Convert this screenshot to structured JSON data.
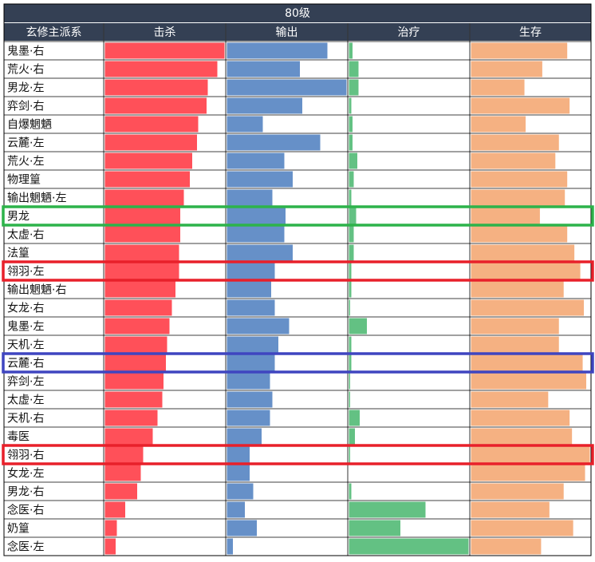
{
  "chart_data": {
    "type": "table",
    "title": "80级",
    "columns": [
      "玄修主派系",
      "击杀",
      "输出",
      "治疗",
      "生存"
    ],
    "colors": {
      "header_bg": "#344054",
      "kill": "#ff5059",
      "output": "#6690c8",
      "heal": "#63c183",
      "survive": "#f5b182",
      "grid": "#000000",
      "highlight_green": "#2db34a",
      "highlight_red": "#e8202a",
      "highlight_blue": "#3f45c0"
    },
    "rows": [
      {
        "name": "鬼墨·右",
        "kill": 1.0,
        "output": 0.84,
        "heal": 0.03,
        "survive": 0.81,
        "highlight": ""
      },
      {
        "name": "荒火·右",
        "kill": 0.94,
        "output": 0.61,
        "heal": 0.08,
        "survive": 0.6,
        "highlight": ""
      },
      {
        "name": "男龙·左",
        "kill": 0.86,
        "output": 1.0,
        "heal": 0.08,
        "survive": 0.45,
        "highlight": ""
      },
      {
        "name": "弈剑·右",
        "kill": 0.85,
        "output": 0.63,
        "heal": 0.02,
        "survive": 0.83,
        "highlight": ""
      },
      {
        "name": "自爆魍魉",
        "kill": 0.78,
        "output": 0.3,
        "heal": 0.03,
        "survive": 0.46,
        "highlight": ""
      },
      {
        "name": "云麓·左",
        "kill": 0.77,
        "output": 0.78,
        "heal": 0.03,
        "survive": 0.74,
        "highlight": ""
      },
      {
        "name": "荒火·左",
        "kill": 0.73,
        "output": 0.48,
        "heal": 0.07,
        "survive": 0.71,
        "highlight": ""
      },
      {
        "name": "物理篁",
        "kill": 0.71,
        "output": 0.55,
        "heal": 0.04,
        "survive": 0.81,
        "highlight": ""
      },
      {
        "name": "输出魍魉·左",
        "kill": 0.66,
        "output": 0.38,
        "heal": 0.02,
        "survive": 0.79,
        "highlight": ""
      },
      {
        "name": "男龙",
        "kill": 0.63,
        "output": 0.49,
        "heal": 0.06,
        "survive": 0.58,
        "highlight": "green"
      },
      {
        "name": "太虚·右",
        "kill": 0.63,
        "output": 0.48,
        "heal": 0.04,
        "survive": 0.81,
        "highlight": ""
      },
      {
        "name": "法篁",
        "kill": 0.62,
        "output": 0.55,
        "heal": 0.04,
        "survive": 0.87,
        "highlight": ""
      },
      {
        "name": "翎羽·左",
        "kill": 0.62,
        "output": 0.4,
        "heal": 0.02,
        "survive": 0.92,
        "highlight": "red"
      },
      {
        "name": "输出魍魉·右",
        "kill": 0.59,
        "output": 0.37,
        "heal": 0.02,
        "survive": 0.78,
        "highlight": ""
      },
      {
        "name": "女龙·右",
        "kill": 0.56,
        "output": 0.4,
        "heal": 0.01,
        "survive": 0.95,
        "highlight": ""
      },
      {
        "name": "鬼墨·左",
        "kill": 0.54,
        "output": 0.52,
        "heal": 0.15,
        "survive": 0.74,
        "highlight": ""
      },
      {
        "name": "天机·左",
        "kill": 0.52,
        "output": 0.43,
        "heal": 0.02,
        "survive": 0.74,
        "highlight": ""
      },
      {
        "name": "云麓·右",
        "kill": 0.51,
        "output": 0.4,
        "heal": 0.02,
        "survive": 0.94,
        "highlight": "blue"
      },
      {
        "name": "弈剑·左",
        "kill": 0.49,
        "output": 0.36,
        "heal": 0.01,
        "survive": 0.97,
        "highlight": ""
      },
      {
        "name": "太虚·左",
        "kill": 0.48,
        "output": 0.38,
        "heal": 0.01,
        "survive": 0.65,
        "highlight": ""
      },
      {
        "name": "天机·右",
        "kill": 0.44,
        "output": 0.36,
        "heal": 0.09,
        "survive": 0.83,
        "highlight": ""
      },
      {
        "name": "毒医",
        "kill": 0.4,
        "output": 0.29,
        "heal": 0.05,
        "survive": 0.85,
        "highlight": ""
      },
      {
        "name": "翎羽·右",
        "kill": 0.32,
        "output": 0.19,
        "heal": 0.01,
        "survive": 1.0,
        "highlight": "red"
      },
      {
        "name": "女龙·左",
        "kill": 0.3,
        "output": 0.19,
        "heal": 0.0,
        "survive": 0.96,
        "highlight": ""
      },
      {
        "name": "男龙·右",
        "kill": 0.27,
        "output": 0.22,
        "heal": 0.02,
        "survive": 0.78,
        "highlight": ""
      },
      {
        "name": "念医·右",
        "kill": 0.17,
        "output": 0.15,
        "heal": 0.64,
        "survive": 0.66,
        "highlight": ""
      },
      {
        "name": "奶篁",
        "kill": 0.1,
        "output": 0.25,
        "heal": 0.43,
        "survive": 0.86,
        "highlight": ""
      },
      {
        "name": "念医·左",
        "kill": 0.09,
        "output": 0.05,
        "heal": 1.0,
        "survive": 0.59,
        "highlight": ""
      }
    ]
  }
}
